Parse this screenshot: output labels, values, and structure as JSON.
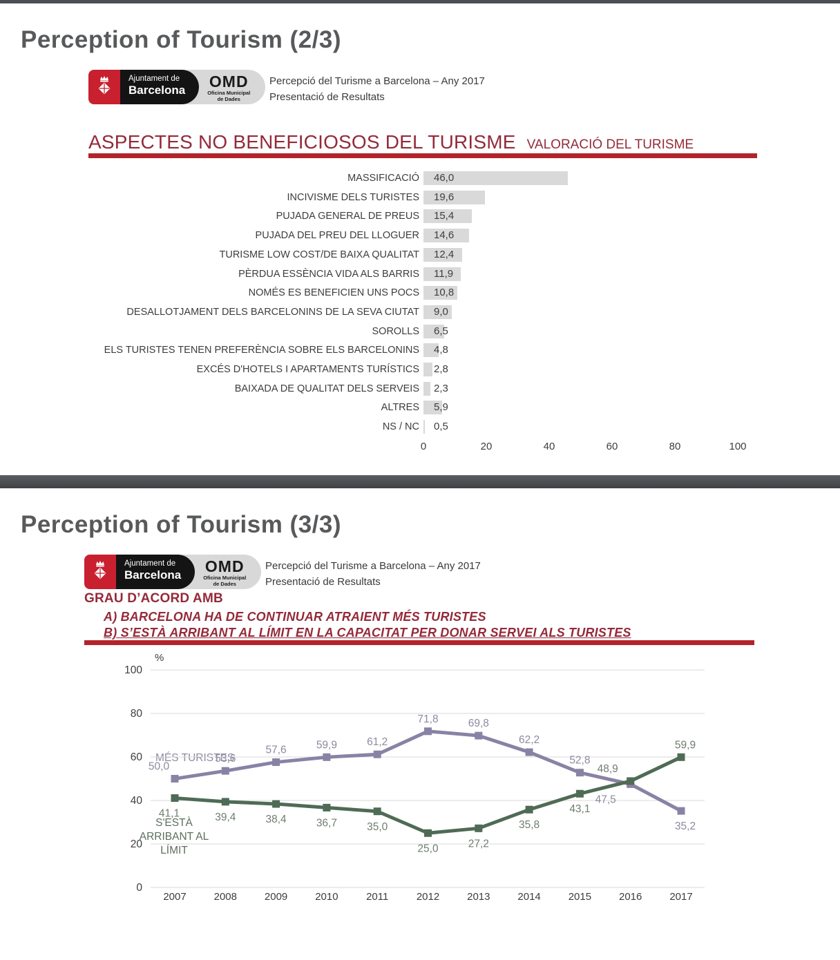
{
  "logo": {
    "org_line1": "Ajuntament de",
    "org_line2": "Barcelona",
    "omd": "OMD",
    "omd_sub1": "Oficina Municipal",
    "omd_sub2": "de Dades"
  },
  "header": {
    "subtitle_line1": "Percepció del Turisme a Barcelona – Any 2017",
    "subtitle_line2": "Presentació de Resultats"
  },
  "slide1": {
    "title": "Perception of Tourism (2/3)",
    "heading": "ASPECTES NO BENEFICIOSOS DEL TURISME",
    "heading_right": "VALORACIÓ DEL TURISME"
  },
  "slide2": {
    "title": "Perception of Tourism (3/3)",
    "heading": "GRAU D’ACORD AMB",
    "line_a": "A) BARCELONA HA DE CONTINUAR ATRAIENT MÉS TURISTES",
    "line_b": "B) S’ESTÀ ARRIBANT AL LÍMIT EN LA CAPACITAT PER DONAR SERVEI ALS TURISTES"
  },
  "colors": {
    "dark_red_text": "#942a39",
    "red_bar": "#b2232b",
    "bar_fill": "#d9d9d9",
    "logo_red": "#c8202f",
    "divider_gray": "#4b4e52",
    "title_gray": "#58595b",
    "purple_line": "#8a82a5",
    "green_line": "#4f6b55",
    "gridline": "#d9d9d9"
  },
  "chart_data": [
    {
      "type": "bar",
      "orientation": "horizontal",
      "title": "ASPECTES NO BENEFICIOSOS DEL TURISME",
      "categories": [
        "MASSIFICACIÓ",
        "INCIVISME DELS TURISTES",
        "PUJADA GENERAL DE PREUS",
        "PUJADA DEL PREU DEL LLOGUER",
        "TURISME LOW COST/DE BAIXA QUALITAT",
        "PÈRDUA ESSÈNCIA VIDA ALS BARRIS",
        "NOMÉS ES BENEFICIEN UNS POCS",
        "DESALLOTJAMENT DELS BARCELONINS DE LA SEVA CIUTAT",
        "SOROLLS",
        "ELS TURISTES TENEN PREFERÈNCIA SOBRE ELS BARCELONINS",
        "EXCÉS D'HOTELS I APARTAMENTS TURÍSTICS",
        "BAIXADA DE QUALITAT DELS SERVEIS",
        "ALTRES",
        "NS / NC"
      ],
      "values": [
        46.0,
        19.6,
        15.4,
        14.6,
        12.4,
        11.9,
        10.8,
        9.0,
        6.5,
        4.8,
        2.8,
        2.3,
        5.9,
        0.5
      ],
      "value_labels": [
        "46,0",
        "19,6",
        "15,4",
        "14,6",
        "12,4",
        "11,9",
        "10,8",
        "9,0",
        "6,5",
        "4,8",
        "2,8",
        "2,3",
        "5,9",
        "0,5"
      ],
      "xlim": [
        0,
        100
      ],
      "x_ticks": [
        0,
        20,
        40,
        60,
        80,
        100
      ],
      "bar_color": "#d9d9d9",
      "grid": false
    },
    {
      "type": "line",
      "title": "GRAU D'ACORD AMB A) / B)",
      "x": [
        "2007",
        "2008",
        "2009",
        "2010",
        "2011",
        "2012",
        "2013",
        "2014",
        "2015",
        "2016",
        "2017"
      ],
      "ylabel": "%",
      "ylim": [
        0,
        100
      ],
      "y_ticks": [
        0,
        20,
        40,
        60,
        80,
        100
      ],
      "grid": true,
      "legend_position": "inline-left",
      "series": [
        {
          "name": "MÉS TURISTES",
          "color": "#8a82a5",
          "label_color": "#8d89a0",
          "values": [
            50.0,
            53.6,
            57.6,
            59.9,
            61.2,
            71.8,
            69.8,
            62.2,
            52.8,
            47.5,
            35.2
          ],
          "labels": [
            "50,0",
            "53,6",
            "57,6",
            "59,9",
            "61,2",
            "71,8",
            "69,8",
            "62,2",
            "52,8",
            "47,5",
            "35,2"
          ],
          "label_positions": [
            "above",
            "above",
            "above",
            "above",
            "above",
            "above",
            "above",
            "above",
            "above",
            "below",
            "below"
          ],
          "label_dx": [
            -23,
            0,
            0,
            0,
            0,
            0,
            0,
            0,
            0,
            -36,
            6
          ]
        },
        {
          "name": "S'ESTÀ ARRIBANT AL LÍMIT",
          "color": "#4f6b55",
          "label_color": "#6e7d6e",
          "values": [
            41.1,
            39.4,
            38.4,
            36.7,
            35.0,
            25.0,
            27.2,
            35.8,
            43.1,
            48.9,
            59.9
          ],
          "labels": [
            "41,1",
            "39,4",
            "38,4",
            "36,7",
            "35,0",
            "25,0",
            "27,2",
            "35,8",
            "43,1",
            "48,9",
            "59,9"
          ],
          "label_positions": [
            "below",
            "below",
            "below",
            "below",
            "below",
            "below",
            "below",
            "below",
            "below",
            "above",
            "above"
          ],
          "label_dx": [
            -8,
            0,
            0,
            0,
            0,
            0,
            0,
            0,
            0,
            -33,
            6
          ]
        }
      ]
    }
  ]
}
